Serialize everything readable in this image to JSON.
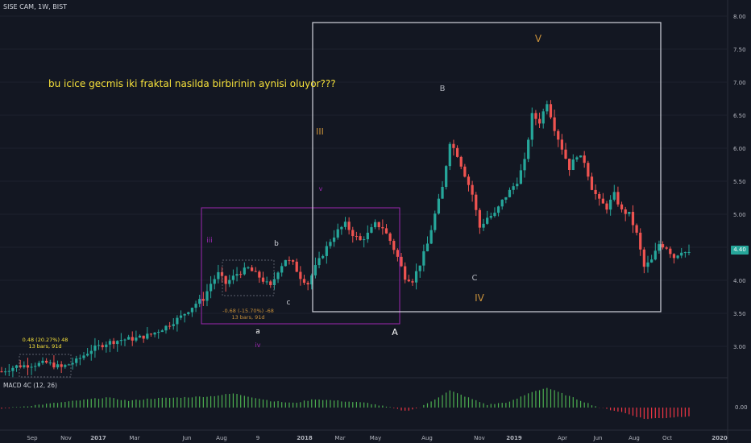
{
  "header": {
    "symbol": "SISE CAM, 1W, BIST"
  },
  "indicator": {
    "label": "MACD 4C (12, 26)",
    "zero_label": "0.00"
  },
  "annotation": {
    "note": "bu icice gecmis iki fraktal nasilda birbirinin aynisi oluyor???"
  },
  "measure_boxes": [
    {
      "line1": "0.48 (20.27%) 48",
      "line2": "13 bars, 91d"
    },
    {
      "line1": "-0.68 (-15.70%) -68",
      "line2": "13 bars, 91d"
    }
  ],
  "wave_labels": [
    "a",
    "b",
    "c",
    "iii",
    "iv",
    "v",
    "A",
    "B",
    "C",
    "III",
    "IV",
    "V"
  ],
  "last_price_label": "4.40",
  "colors": {
    "bull": "#26a69a",
    "bear": "#ef5350",
    "macd_pos": "#4caf50",
    "macd_neg": "#f23645",
    "purple": "#9c27b0",
    "orange": "#c8903a",
    "white_box": "#d1d4dc",
    "note": "#f6e13a"
  },
  "chart_data": {
    "type": "candlestick",
    "title": "SISE CAM, 1W, BIST",
    "price_ticks": [
      3.0,
      3.5,
      4.0,
      4.5,
      5.0,
      5.5,
      6.0,
      6.5,
      7.0,
      7.5,
      8.0
    ],
    "price_tick_labels": [
      "3.00",
      "3.50",
      "4.00",
      "4.50",
      "5.00",
      "5.50",
      "6.00",
      "6.50",
      "7.00",
      "7.50",
      "8.00"
    ],
    "ylim": [
      2.55,
      8.15
    ],
    "x_tick_labels": [
      "Sep",
      "Nov",
      "2017",
      "Mar",
      "Jun",
      "Aug",
      "9",
      "2018",
      "Mar",
      "May",
      "Aug",
      "Nov",
      "2019",
      "Apr",
      "Jun",
      "Aug",
      "Oct",
      "2020"
    ],
    "close_path": [
      [
        0,
        2.62
      ],
      [
        4,
        2.7
      ],
      [
        8,
        2.72
      ],
      [
        12,
        2.75
      ],
      [
        16,
        2.68
      ],
      [
        20,
        2.78
      ],
      [
        24,
        2.95
      ],
      [
        28,
        3.05
      ],
      [
        32,
        3.1
      ],
      [
        36,
        3.12
      ],
      [
        40,
        3.18
      ],
      [
        44,
        3.3
      ],
      [
        48,
        3.45
      ],
      [
        52,
        3.65
      ],
      [
        54,
        3.72
      ],
      [
        56,
        3.95
      ],
      [
        58,
        4.1
      ],
      [
        60,
        3.95
      ],
      [
        63,
        4.1
      ],
      [
        66,
        4.18
      ],
      [
        69,
        4.05
      ],
      [
        72,
        3.9
      ],
      [
        74,
        4.15
      ],
      [
        76,
        4.32
      ],
      [
        78,
        4.25
      ],
      [
        80,
        4.05
      ],
      [
        82,
        3.95
      ],
      [
        84,
        4.2
      ],
      [
        86,
        4.4
      ],
      [
        88,
        4.6
      ],
      [
        90,
        4.75
      ],
      [
        92,
        4.85
      ],
      [
        94,
        4.7
      ],
      [
        96,
        4.6
      ],
      [
        98,
        4.7
      ],
      [
        100,
        4.85
      ],
      [
        102,
        4.8
      ],
      [
        104,
        4.6
      ],
      [
        106,
        4.35
      ],
      [
        108,
        4.05
      ],
      [
        110,
        4.0
      ],
      [
        112,
        4.25
      ],
      [
        114,
        4.55
      ],
      [
        116,
        5.0
      ],
      [
        118,
        5.4
      ],
      [
        120,
        6.1
      ],
      [
        122,
        5.9
      ],
      [
        124,
        5.6
      ],
      [
        126,
        5.3
      ],
      [
        128,
        4.8
      ],
      [
        130,
        4.95
      ],
      [
        132,
        5.0
      ],
      [
        134,
        5.2
      ],
      [
        136,
        5.35
      ],
      [
        138,
        5.5
      ],
      [
        140,
        5.8
      ],
      [
        142,
        6.5
      ],
      [
        144,
        6.4
      ],
      [
        146,
        6.7
      ],
      [
        148,
        6.3
      ],
      [
        150,
        6.0
      ],
      [
        152,
        5.7
      ],
      [
        154,
        5.9
      ],
      [
        156,
        5.8
      ],
      [
        158,
        5.4
      ],
      [
        160,
        5.2
      ],
      [
        162,
        5.1
      ],
      [
        164,
        5.3
      ],
      [
        166,
        5.05
      ],
      [
        168,
        5.0
      ],
      [
        170,
        4.7
      ],
      [
        172,
        4.2
      ],
      [
        174,
        4.3
      ],
      [
        176,
        4.55
      ],
      [
        178,
        4.5
      ],
      [
        180,
        4.35
      ],
      [
        182,
        4.45
      ],
      [
        184,
        4.4
      ]
    ],
    "macd_path": [
      [
        0,
        -0.02
      ],
      [
        10,
        0.05
      ],
      [
        20,
        0.12
      ],
      [
        28,
        0.18
      ],
      [
        34,
        0.12
      ],
      [
        40,
        0.16
      ],
      [
        48,
        0.18
      ],
      [
        56,
        0.2
      ],
      [
        62,
        0.25
      ],
      [
        66,
        0.2
      ],
      [
        72,
        0.12
      ],
      [
        78,
        0.08
      ],
      [
        84,
        0.15
      ],
      [
        90,
        0.12
      ],
      [
        98,
        0.08
      ],
      [
        104,
        0.0
      ],
      [
        108,
        -0.06
      ],
      [
        112,
        0.0
      ],
      [
        116,
        0.15
      ],
      [
        120,
        0.3
      ],
      [
        124,
        0.2
      ],
      [
        130,
        0.05
      ],
      [
        136,
        0.1
      ],
      [
        142,
        0.28
      ],
      [
        146,
        0.35
      ],
      [
        150,
        0.25
      ],
      [
        156,
        0.1
      ],
      [
        160,
        0.0
      ],
      [
        166,
        -0.08
      ],
      [
        172,
        -0.2
      ],
      [
        178,
        -0.18
      ],
      [
        184,
        -0.15
      ]
    ],
    "macd_ylim": [
      -0.4,
      0.5
    ]
  }
}
